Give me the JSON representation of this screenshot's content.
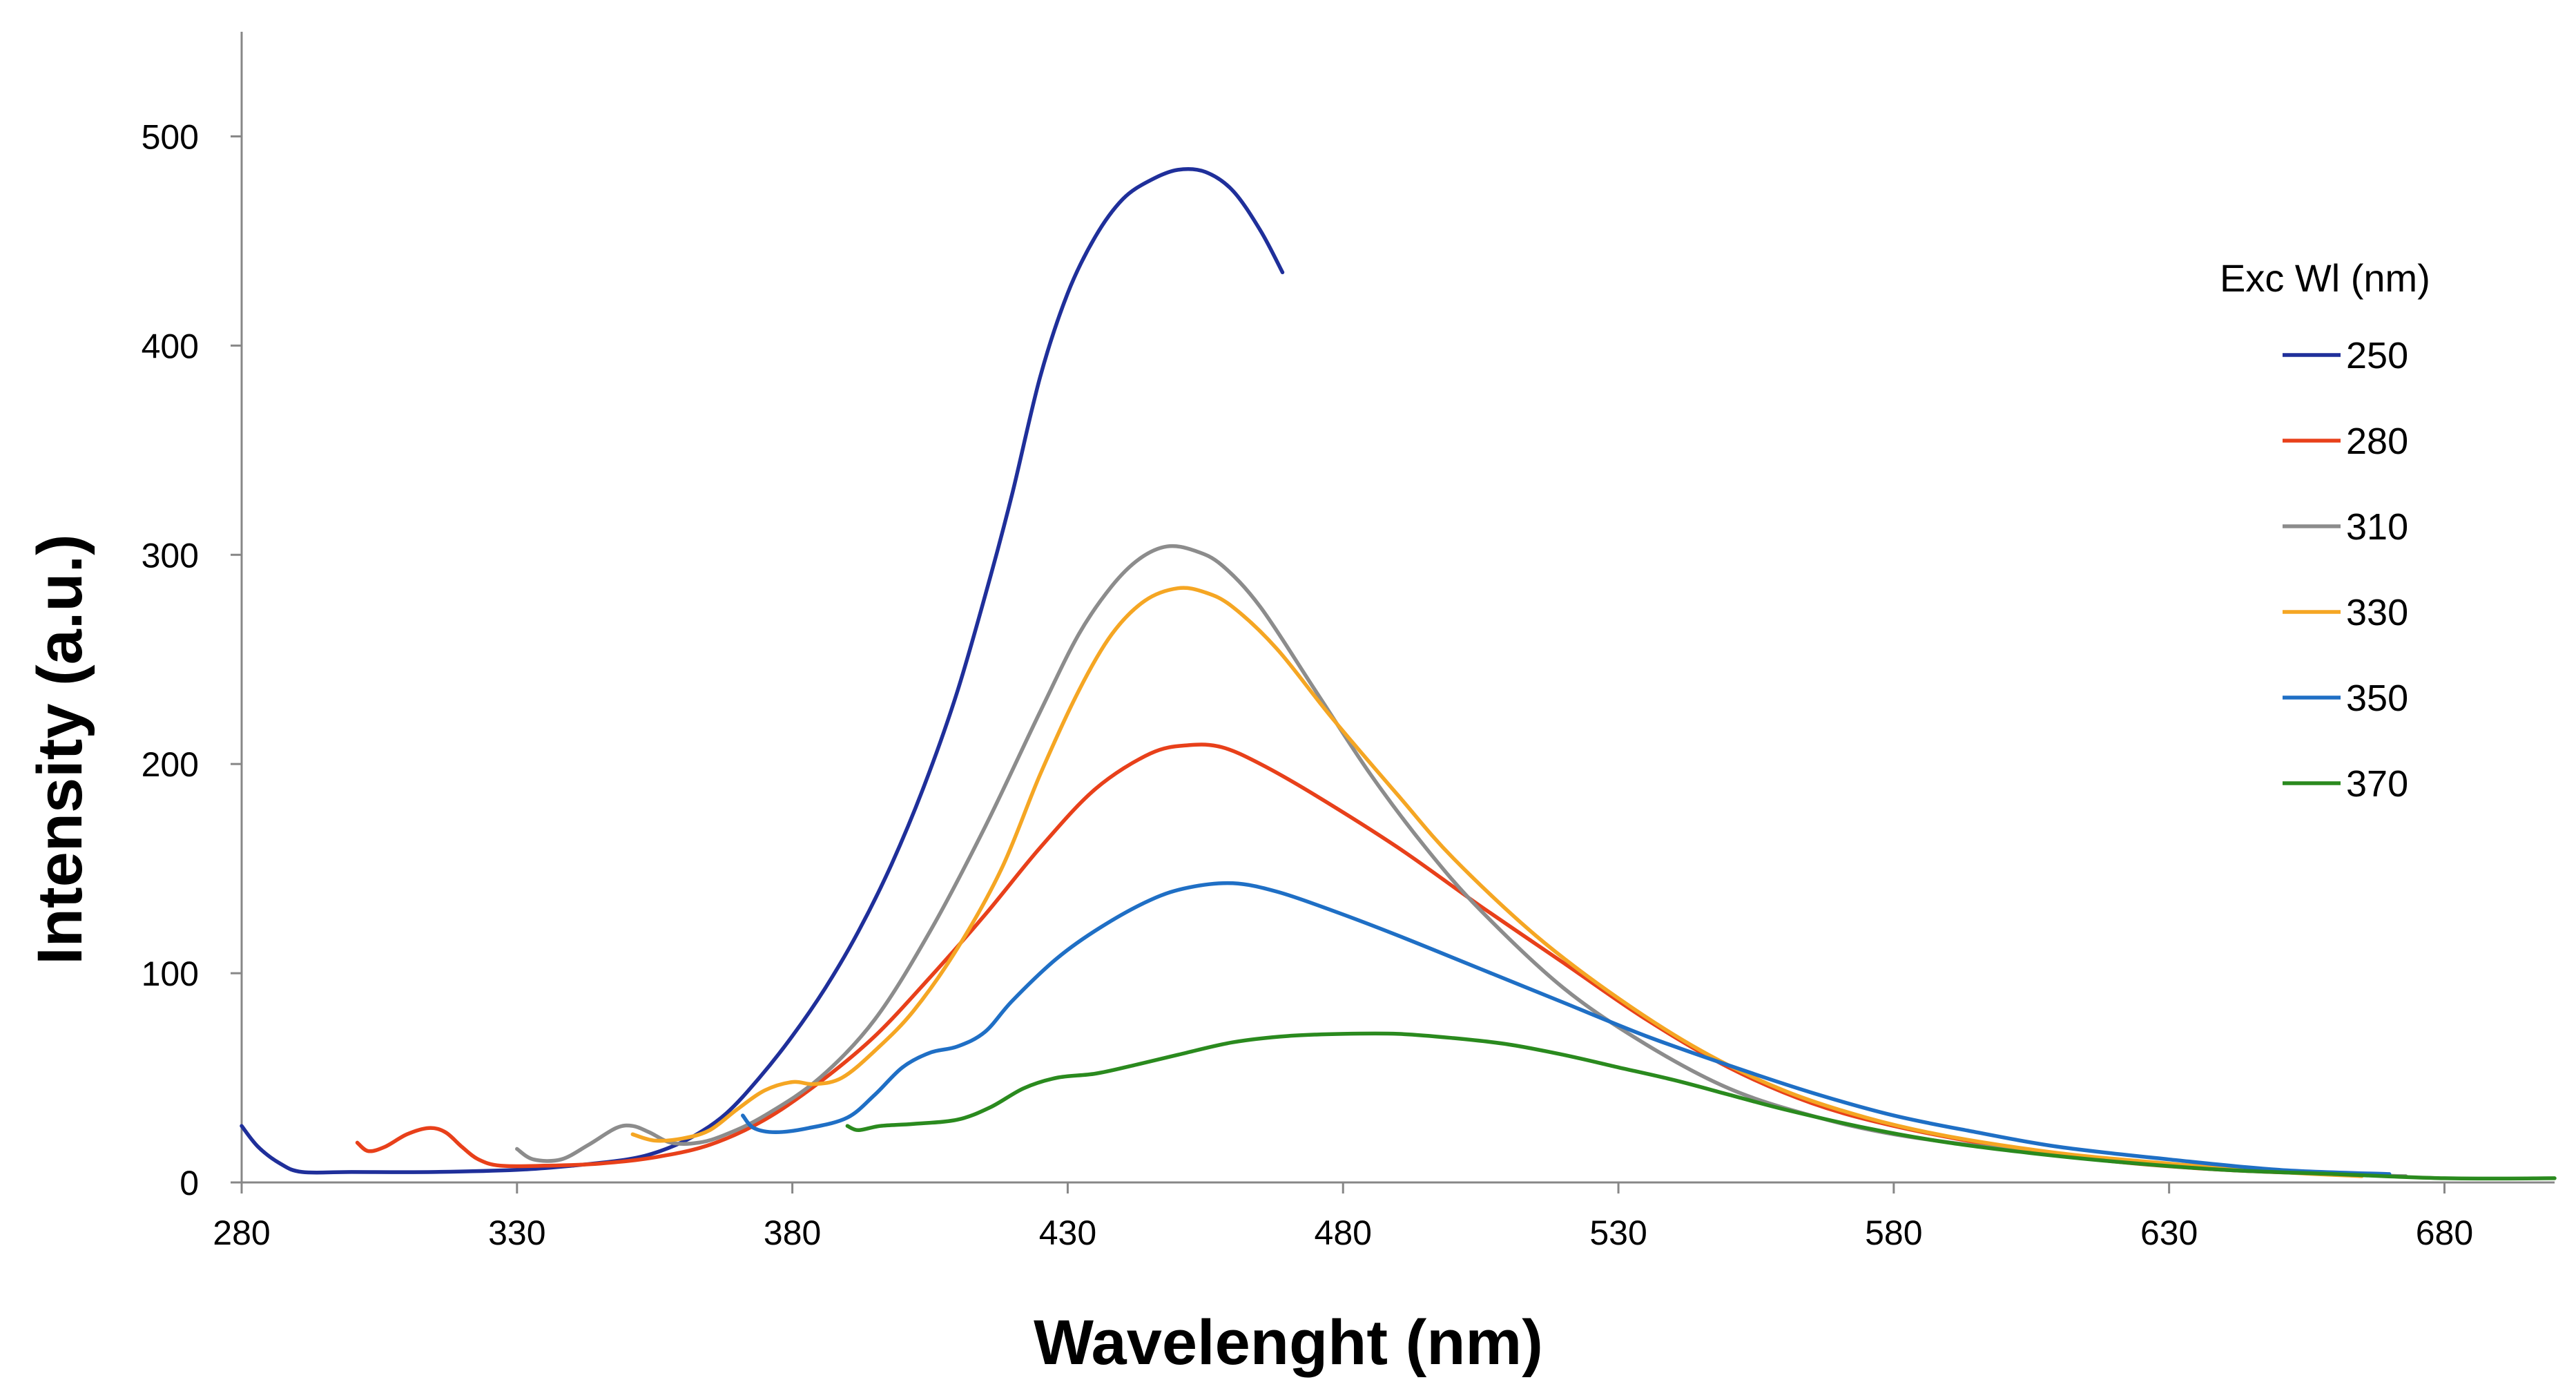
{
  "chart_data": {
    "type": "line",
    "title": "",
    "xlabel": "Wavelenght (nm)",
    "ylabel": "Intensity (a.u.)",
    "xlim": [
      280,
      700
    ],
    "ylim": [
      0,
      550
    ],
    "xticks": [
      280,
      330,
      380,
      430,
      480,
      530,
      580,
      630,
      680
    ],
    "yticks": [
      0,
      100,
      200,
      300,
      400,
      500
    ],
    "grid": false,
    "legend": {
      "title": "Exc Wl (nm)",
      "placement": "right"
    },
    "series": [
      {
        "name": "250",
        "color": "#1f2f9a",
        "points": [
          [
            280,
            27
          ],
          [
            283,
            17
          ],
          [
            287,
            9
          ],
          [
            291,
            5
          ],
          [
            300,
            5
          ],
          [
            315,
            5
          ],
          [
            330,
            6
          ],
          [
            340,
            8
          ],
          [
            350,
            11
          ],
          [
            356,
            15
          ],
          [
            362,
            22
          ],
          [
            368,
            33
          ],
          [
            374,
            50
          ],
          [
            380,
            70
          ],
          [
            386,
            93
          ],
          [
            392,
            120
          ],
          [
            398,
            152
          ],
          [
            404,
            190
          ],
          [
            410,
            235
          ],
          [
            416,
            290
          ],
          [
            420,
            330
          ],
          [
            425,
            385
          ],
          [
            430,
            425
          ],
          [
            435,
            452
          ],
          [
            440,
            470
          ],
          [
            445,
            479
          ],
          [
            450,
            484
          ],
          [
            455,
            483
          ],
          [
            460,
            474
          ],
          [
            465,
            455
          ],
          [
            469,
            435
          ]
        ]
      },
      {
        "name": "280",
        "color": "#e8401a",
        "points": [
          [
            301,
            19
          ],
          [
            303,
            15
          ],
          [
            306,
            17
          ],
          [
            310,
            23
          ],
          [
            314,
            26
          ],
          [
            317,
            24
          ],
          [
            320,
            17
          ],
          [
            323,
            11
          ],
          [
            327,
            8
          ],
          [
            335,
            8
          ],
          [
            345,
            9
          ],
          [
            355,
            12
          ],
          [
            365,
            18
          ],
          [
            375,
            30
          ],
          [
            385,
            48
          ],
          [
            395,
            70
          ],
          [
            405,
            98
          ],
          [
            415,
            128
          ],
          [
            425,
            160
          ],
          [
            435,
            188
          ],
          [
            445,
            205
          ],
          [
            452,
            209
          ],
          [
            458,
            208
          ],
          [
            465,
            200
          ],
          [
            475,
            185
          ],
          [
            490,
            160
          ],
          [
            505,
            132
          ],
          [
            520,
            105
          ],
          [
            535,
            78
          ],
          [
            550,
            55
          ],
          [
            565,
            38
          ],
          [
            580,
            27
          ],
          [
            600,
            17
          ],
          [
            620,
            10
          ],
          [
            640,
            6
          ],
          [
            660,
            4
          ]
        ]
      },
      {
        "name": "310",
        "color": "#8c8c8c",
        "points": [
          [
            330,
            16
          ],
          [
            333,
            11
          ],
          [
            338,
            11
          ],
          [
            343,
            18
          ],
          [
            348,
            26
          ],
          [
            351,
            27
          ],
          [
            354,
            24
          ],
          [
            358,
            19
          ],
          [
            363,
            19
          ],
          [
            368,
            23
          ],
          [
            375,
            32
          ],
          [
            385,
            50
          ],
          [
            395,
            78
          ],
          [
            405,
            120
          ],
          [
            415,
            170
          ],
          [
            425,
            225
          ],
          [
            432,
            262
          ],
          [
            438,
            285
          ],
          [
            443,
            298
          ],
          [
            448,
            304
          ],
          [
            453,
            302
          ],
          [
            458,
            295
          ],
          [
            465,
            275
          ],
          [
            475,
            235
          ],
          [
            485,
            195
          ],
          [
            495,
            160
          ],
          [
            505,
            130
          ],
          [
            520,
            93
          ],
          [
            535,
            66
          ],
          [
            550,
            45
          ],
          [
            565,
            32
          ],
          [
            580,
            23
          ],
          [
            600,
            16
          ],
          [
            620,
            11
          ],
          [
            640,
            7
          ],
          [
            660,
            4
          ],
          [
            673,
            3
          ]
        ]
      },
      {
        "name": "330",
        "color": "#f5a623",
        "points": [
          [
            351,
            23
          ],
          [
            355,
            20
          ],
          [
            360,
            21
          ],
          [
            365,
            25
          ],
          [
            370,
            35
          ],
          [
            375,
            44
          ],
          [
            380,
            48
          ],
          [
            384,
            47
          ],
          [
            389,
            50
          ],
          [
            395,
            63
          ],
          [
            402,
            82
          ],
          [
            410,
            112
          ],
          [
            418,
            150
          ],
          [
            425,
            195
          ],
          [
            432,
            235
          ],
          [
            438,
            262
          ],
          [
            444,
            278
          ],
          [
            450,
            284
          ],
          [
            455,
            282
          ],
          [
            460,
            275
          ],
          [
            468,
            255
          ],
          [
            478,
            222
          ],
          [
            490,
            185
          ],
          [
            500,
            155
          ],
          [
            515,
            118
          ],
          [
            530,
            88
          ],
          [
            545,
            63
          ],
          [
            560,
            44
          ],
          [
            575,
            31
          ],
          [
            590,
            22
          ],
          [
            610,
            14
          ],
          [
            630,
            9
          ],
          [
            650,
            5
          ],
          [
            665,
            3
          ]
        ]
      },
      {
        "name": "350",
        "color": "#1f6fc5",
        "points": [
          [
            371,
            32
          ],
          [
            373,
            26
          ],
          [
            377,
            24
          ],
          [
            383,
            26
          ],
          [
            390,
            31
          ],
          [
            395,
            42
          ],
          [
            400,
            55
          ],
          [
            405,
            62
          ],
          [
            410,
            65
          ],
          [
            415,
            72
          ],
          [
            420,
            87
          ],
          [
            428,
            107
          ],
          [
            436,
            122
          ],
          [
            445,
            135
          ],
          [
            452,
            141
          ],
          [
            460,
            143
          ],
          [
            468,
            139
          ],
          [
            478,
            130
          ],
          [
            490,
            118
          ],
          [
            505,
            102
          ],
          [
            520,
            86
          ],
          [
            535,
            70
          ],
          [
            550,
            56
          ],
          [
            565,
            43
          ],
          [
            580,
            32
          ],
          [
            595,
            24
          ],
          [
            610,
            17
          ],
          [
            630,
            11
          ],
          [
            650,
            6
          ],
          [
            670,
            4
          ]
        ]
      },
      {
        "name": "370",
        "color": "#2a8a1e",
        "points": [
          [
            390,
            27
          ],
          [
            392,
            25
          ],
          [
            396,
            27
          ],
          [
            402,
            28
          ],
          [
            410,
            30
          ],
          [
            416,
            36
          ],
          [
            422,
            45
          ],
          [
            428,
            50
          ],
          [
            435,
            52
          ],
          [
            442,
            56
          ],
          [
            450,
            61
          ],
          [
            460,
            67
          ],
          [
            470,
            70
          ],
          [
            480,
            71
          ],
          [
            490,
            71
          ],
          [
            500,
            69
          ],
          [
            510,
            66
          ],
          [
            520,
            61
          ],
          [
            530,
            55
          ],
          [
            540,
            49
          ],
          [
            550,
            42
          ],
          [
            560,
            35
          ],
          [
            575,
            26
          ],
          [
            590,
            19
          ],
          [
            605,
            14
          ],
          [
            620,
            10
          ],
          [
            640,
            6
          ],
          [
            660,
            4
          ],
          [
            680,
            2
          ],
          [
            700,
            2
          ]
        ]
      }
    ]
  }
}
